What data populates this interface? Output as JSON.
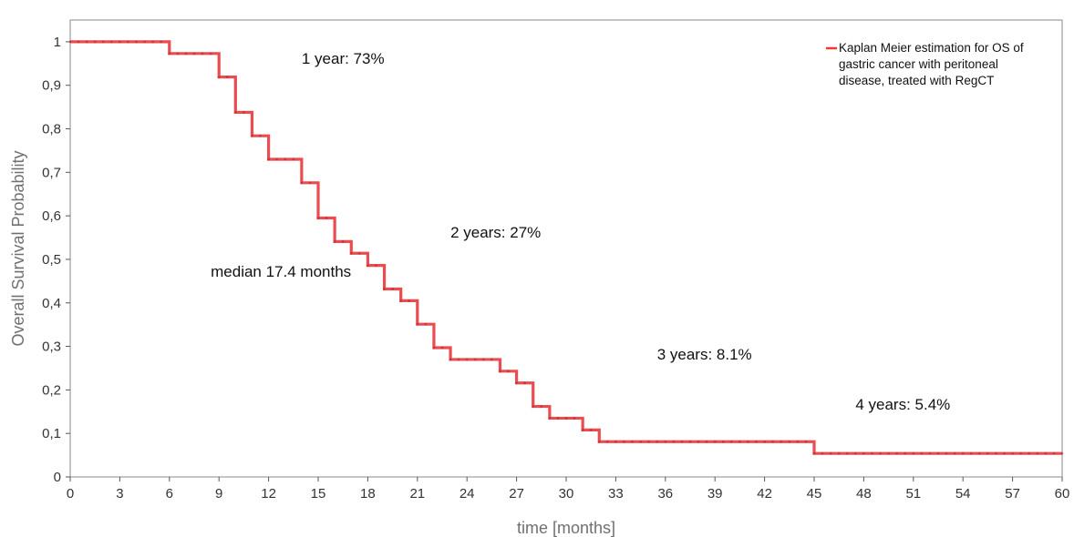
{
  "chart_data": {
    "type": "line",
    "title": "",
    "xlabel": "time [months]",
    "ylabel": "Overall Survival Probability",
    "xlim": [
      0,
      60
    ],
    "ylim": [
      0,
      1.05
    ],
    "x_ticks": [
      0,
      3,
      6,
      9,
      12,
      15,
      18,
      21,
      24,
      27,
      30,
      33,
      36,
      39,
      42,
      45,
      48,
      51,
      54,
      57,
      60
    ],
    "x_tick_labels": [
      "0",
      "3",
      "6",
      "9",
      "12",
      "15",
      "18",
      "21",
      "24",
      "27",
      "30",
      "33",
      "36",
      "39",
      "42",
      "45",
      "48",
      "51",
      "54",
      "57",
      "60"
    ],
    "y_ticks": [
      0,
      0.1,
      0.2,
      0.3,
      0.4,
      0.5,
      0.6,
      0.7,
      0.8,
      0.9,
      1
    ],
    "y_tick_labels": [
      "0",
      "0,1",
      "0,2",
      "0,3",
      "0,4",
      "0,5",
      "0,6",
      "0,7",
      "0,8",
      "0,9",
      "1"
    ],
    "grid": false,
    "legend_position": "top-right",
    "series": [
      {
        "name": "Kaplan Meier estimation for OS of gastric cancer with peritoneal disease, treated with RegCT",
        "color": "#e8383d",
        "step": true,
        "x": [
          0,
          6,
          9,
          10,
          11,
          12,
          14,
          15,
          16,
          17,
          18,
          19,
          20,
          21,
          22,
          23,
          26,
          27,
          28,
          29,
          31,
          32,
          45,
          60
        ],
        "y": [
          1.0,
          0.973,
          0.919,
          0.838,
          0.784,
          0.73,
          0.676,
          0.595,
          0.541,
          0.514,
          0.486,
          0.432,
          0.405,
          0.351,
          0.297,
          0.27,
          0.243,
          0.216,
          0.162,
          0.135,
          0.108,
          0.081,
          0.054,
          0.054
        ]
      }
    ],
    "annotations": [
      {
        "text": "1 year: 73%",
        "x": 14,
        "y": 0.95
      },
      {
        "text": "2 years: 27%",
        "x": 23,
        "y": 0.55
      },
      {
        "text": "median 17.4 months",
        "x": 8.5,
        "y": 0.46
      },
      {
        "text": "3 years: 8.1%",
        "x": 35.5,
        "y": 0.27
      },
      {
        "text": "4 years: 5.4%",
        "x": 47.5,
        "y": 0.155
      }
    ],
    "legend_lines": [
      "Kaplan Meier estimation for OS of",
      "gastric cancer with peritoneal",
      "disease, treated with RegCT"
    ]
  }
}
